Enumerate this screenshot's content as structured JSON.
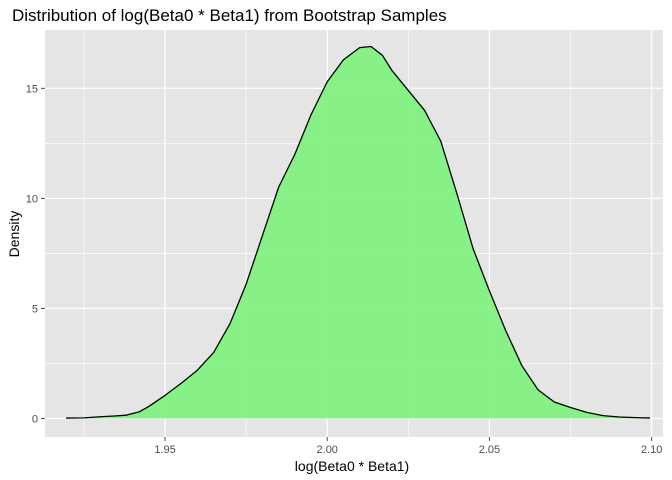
{
  "chart_data": {
    "type": "area",
    "title": "Distribution of log(Beta0 * Beta1) from Bootstrap Samples",
    "xlabel": "log(Beta0 * Beta1)",
    "ylabel": "Density",
    "xlim": [
      1.913,
      2.1035
    ],
    "ylim": [
      -0.84,
      17.65
    ],
    "xticks": [
      1.95,
      2.0,
      2.05,
      2.1
    ],
    "xtick_labels": [
      "1.95",
      "2.00",
      "2.05",
      "2.10"
    ],
    "xminor": [
      1.925,
      1.975,
      2.025,
      2.075
    ],
    "yticks": [
      0,
      5,
      10,
      15
    ],
    "ytick_labels": [
      "0",
      "5",
      "10",
      "15"
    ],
    "yminor": [
      2.5,
      7.5,
      12.5
    ],
    "grid": true,
    "legend": "none",
    "series": [
      {
        "x": [
          1.9195,
          1.925,
          1.93,
          1.935,
          1.938,
          1.942,
          1.945,
          1.95,
          1.955,
          1.96,
          1.965,
          1.97,
          1.975,
          1.98,
          1.985,
          1.99,
          1.995,
          2.0,
          2.005,
          2.01,
          2.0135,
          2.017,
          2.02,
          2.025,
          2.03,
          2.035,
          2.04,
          2.045,
          2.05,
          2.055,
          2.06,
          2.065,
          2.07,
          2.075,
          2.08,
          2.085,
          2.09,
          2.095,
          2.0995
        ],
        "y": [
          0.02,
          0.03,
          0.08,
          0.12,
          0.15,
          0.3,
          0.55,
          1.05,
          1.6,
          2.2,
          3.0,
          4.3,
          6.1,
          8.3,
          10.5,
          12.0,
          13.8,
          15.3,
          16.3,
          16.85,
          16.9,
          16.5,
          15.8,
          14.9,
          14.0,
          12.6,
          10.2,
          7.7,
          5.8,
          4.0,
          2.4,
          1.3,
          0.75,
          0.5,
          0.28,
          0.13,
          0.07,
          0.04,
          0.02
        ]
      }
    ],
    "colors": {
      "fill": "#7cf27c",
      "line": "#000000",
      "panel": "#e5e5e5",
      "grid": "#ffffff",
      "tick": "#4d4d4d"
    }
  }
}
